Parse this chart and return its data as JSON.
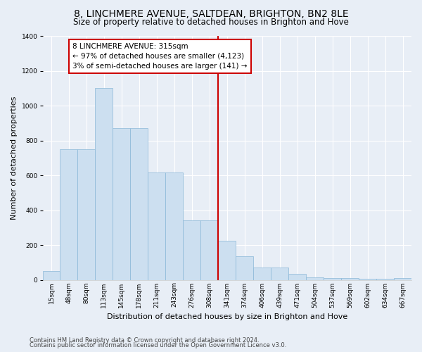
{
  "title": "8, LINCHMERE AVENUE, SALTDEAN, BRIGHTON, BN2 8LE",
  "subtitle": "Size of property relative to detached houses in Brighton and Hove",
  "xlabel": "Distribution of detached houses by size in Brighton and Hove",
  "ylabel": "Number of detached properties",
  "footnote1": "Contains HM Land Registry data © Crown copyright and database right 2024.",
  "footnote2": "Contains public sector information licensed under the Open Government Licence v3.0.",
  "categories": [
    "15sqm",
    "48sqm",
    "80sqm",
    "113sqm",
    "145sqm",
    "178sqm",
    "211sqm",
    "243sqm",
    "276sqm",
    "308sqm",
    "341sqm",
    "374sqm",
    "406sqm",
    "439sqm",
    "471sqm",
    "504sqm",
    "537sqm",
    "569sqm",
    "602sqm",
    "634sqm",
    "667sqm"
  ],
  "values": [
    50,
    750,
    750,
    1100,
    870,
    870,
    615,
    615,
    340,
    340,
    225,
    135,
    70,
    70,
    35,
    15,
    10,
    10,
    5,
    5,
    10
  ],
  "bar_color": "#ccdff0",
  "bar_edge_color": "#8ab8d8",
  "background_color": "#e8eef6",
  "grid_color": "#ffffff",
  "vline_color": "#cc0000",
  "annotation_text": "8 LINCHMERE AVENUE: 315sqm\n← 97% of detached houses are smaller (4,123)\n3% of semi-detached houses are larger (141) →",
  "annotation_box_color": "#cc0000",
  "annotation_bg": "#ffffff",
  "ylim": [
    0,
    1400
  ],
  "yticks": [
    0,
    200,
    400,
    600,
    800,
    1000,
    1200,
    1400
  ],
  "title_fontsize": 10,
  "subtitle_fontsize": 8.5,
  "xlabel_fontsize": 8,
  "ylabel_fontsize": 8,
  "tick_fontsize": 6.5,
  "annot_fontsize": 7.5,
  "footnote_fontsize": 6
}
